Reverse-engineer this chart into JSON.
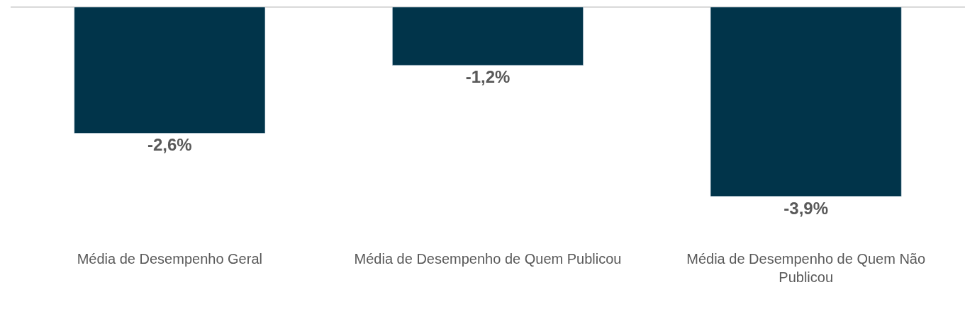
{
  "chart_data": {
    "type": "bar",
    "categories": [
      "Média de Desempenho Geral",
      "Média de Desempenho de Quem Publicou",
      "Média de Desempenho de Quem Não Publicou"
    ],
    "values": [
      -2.6,
      -1.2,
      -3.9
    ],
    "value_labels": [
      "-2,6%",
      "-1,2%",
      "-3,9%"
    ],
    "color": "#01344a"
  }
}
